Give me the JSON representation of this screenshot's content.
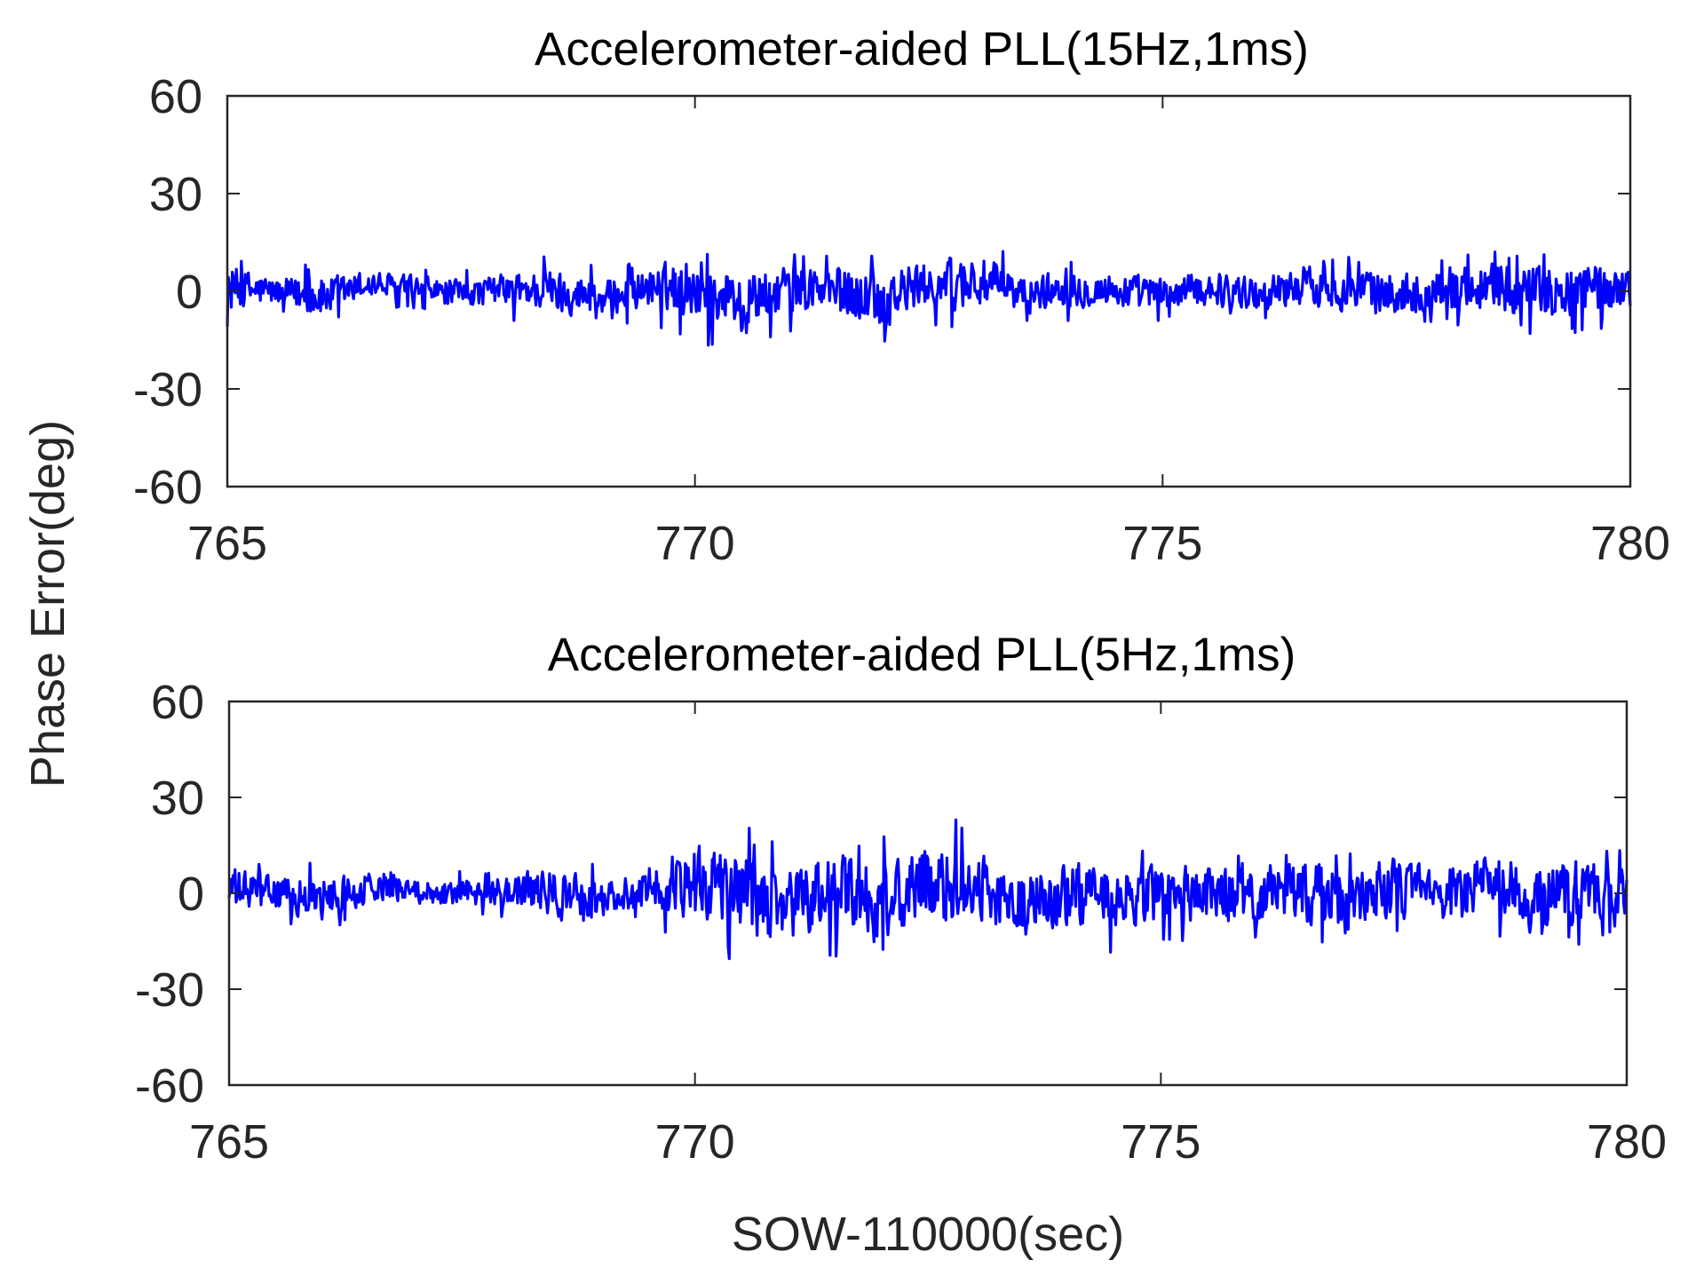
{
  "figure": {
    "shared_ylabel": "Phase Error(deg)",
    "shared_xlabel": "SOW-110000(sec)"
  },
  "chart_data": [
    {
      "type": "line",
      "title": "Accelerometer-aided  PLL(15Hz,1ms)",
      "xlabel": "",
      "ylabel": "Phase Error(deg)",
      "xlim": [
        765,
        780
      ],
      "ylim": [
        -60,
        60
      ],
      "x_ticks": [
        765,
        770,
        775,
        780
      ],
      "y_ticks": [
        -60,
        -30,
        0,
        30,
        60
      ],
      "grid": false,
      "line_color": "#0000ff",
      "series": [
        {
          "x": [
            765.0,
            765.5,
            766.0,
            766.5,
            767.0,
            767.5,
            768.0,
            768.5,
            769.0,
            769.5,
            770.0,
            770.5,
            771.0,
            771.5,
            772.0,
            772.5,
            773.0,
            773.5,
            774.0,
            774.5,
            775.0,
            775.5,
            776.0,
            776.5,
            777.0,
            777.5,
            778.0,
            778.5,
            779.0,
            779.5,
            780.0
          ],
          "values": [
            1,
            0,
            -2,
            2,
            1,
            -1,
            1,
            0,
            -2,
            1,
            2,
            -3,
            1,
            0,
            -2,
            2,
            3,
            -1,
            1,
            0,
            -1,
            1,
            -1,
            2,
            0,
            -1,
            1,
            2,
            -1,
            1,
            1
          ],
          "envelope_max": [
            13,
            7,
            9,
            8,
            7,
            7,
            6,
            12,
            8,
            9,
            14,
            11,
            12,
            12,
            13,
            11,
            17,
            9,
            9,
            8,
            8,
            8,
            8,
            9,
            11,
            10,
            12,
            13,
            14,
            16,
            11
          ],
          "envelope_min": [
            -12,
            -7,
            -13,
            -6,
            -6,
            -7,
            -9,
            -10,
            -9,
            -11,
            -18,
            -16,
            -13,
            -14,
            -17,
            -12,
            -12,
            -10,
            -9,
            -10,
            -10,
            -9,
            -9,
            -11,
            -10,
            -12,
            -10,
            -12,
            -14,
            -14,
            -8
          ]
        }
      ]
    },
    {
      "type": "line",
      "title": "Accelerometer-aided  PLL(5Hz,1ms)",
      "xlabel": "SOW-110000(sec)",
      "ylabel": "Phase Error(deg)",
      "xlim": [
        765,
        780
      ],
      "ylim": [
        -60,
        60
      ],
      "x_ticks": [
        765,
        770,
        775,
        780
      ],
      "y_ticks": [
        -60,
        -30,
        0,
        30,
        60
      ],
      "grid": false,
      "line_color": "#0000ff",
      "series": [
        {
          "x": [
            765.0,
            765.5,
            766.0,
            766.5,
            767.0,
            767.5,
            768.0,
            768.5,
            769.0,
            769.5,
            770.0,
            770.5,
            771.0,
            771.5,
            772.0,
            772.5,
            773.0,
            773.5,
            774.0,
            774.5,
            775.0,
            775.5,
            776.0,
            776.5,
            777.0,
            777.5,
            778.0,
            778.5,
            779.0,
            779.5,
            780.0
          ],
          "values": [
            1,
            0,
            -2,
            2,
            1,
            0,
            1,
            0,
            -2,
            1,
            5,
            0,
            -5,
            2,
            -4,
            3,
            2,
            -4,
            0,
            -3,
            1,
            -2,
            0,
            1,
            -3,
            2,
            -1,
            2,
            -2,
            1,
            0
          ],
          "envelope_max": [
            12,
            8,
            10,
            8,
            7,
            7,
            6,
            16,
            8,
            9,
            20,
            22,
            15,
            17,
            20,
            23,
            25,
            14,
            13,
            13,
            14,
            13,
            12,
            14,
            15,
            16,
            14,
            17,
            16,
            17,
            14
          ],
          "envelope_min": [
            -12,
            -8,
            -14,
            -7,
            -6,
            -7,
            -9,
            -11,
            -9,
            -10,
            -25,
            -20,
            -21,
            -20,
            -20,
            -16,
            -15,
            -18,
            -20,
            -20,
            -18,
            -18,
            -17,
            -18,
            -18,
            -15,
            -15,
            -17,
            -16,
            -16,
            -10
          ]
        }
      ]
    }
  ]
}
